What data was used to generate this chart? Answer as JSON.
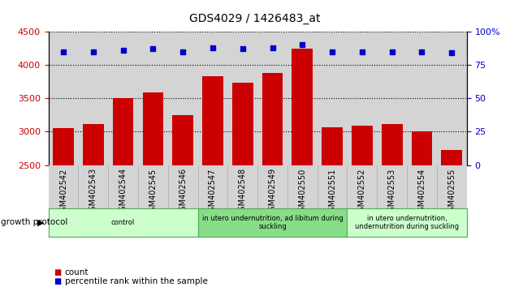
{
  "title": "GDS4029 / 1426483_at",
  "categories": [
    "GSM402542",
    "GSM402543",
    "GSM402544",
    "GSM402545",
    "GSM402546",
    "GSM402547",
    "GSM402548",
    "GSM402549",
    "GSM402550",
    "GSM402551",
    "GSM402552",
    "GSM402553",
    "GSM402554",
    "GSM402555"
  ],
  "counts": [
    3050,
    3110,
    3500,
    3590,
    3250,
    3830,
    3730,
    3880,
    4250,
    3060,
    3090,
    3120,
    3000,
    2720
  ],
  "percentiles": [
    85,
    85,
    86,
    87,
    85,
    88,
    87,
    88,
    90,
    85,
    85,
    85,
    85,
    84
  ],
  "ylim_left": [
    2500,
    4500
  ],
  "ylim_right": [
    0,
    100
  ],
  "yticks_left": [
    2500,
    3000,
    3500,
    4000,
    4500
  ],
  "yticks_right": [
    0,
    25,
    50,
    75,
    100
  ],
  "bar_color": "#cc0000",
  "dot_color": "#0000cc",
  "col_bg_color": "#d4d4d4",
  "plot_bg": "#ffffff",
  "grid_color": "#000000",
  "groups": [
    {
      "label": "control",
      "start": 0,
      "end": 4,
      "color": "#ccffcc"
    },
    {
      "label": "in utero undernutrition, ad libitum during\nsuckling",
      "start": 5,
      "end": 9,
      "color": "#88dd88"
    },
    {
      "label": "in utero undernutrition,\nundernutrition during suckling",
      "start": 10,
      "end": 13,
      "color": "#ccffcc"
    }
  ],
  "growth_protocol_label": "growth protocol",
  "legend_count_label": "count",
  "legend_pct_label": "percentile rank within the sample",
  "right_axis_label_color": "#0000cc",
  "left_axis_label_color": "#cc0000"
}
